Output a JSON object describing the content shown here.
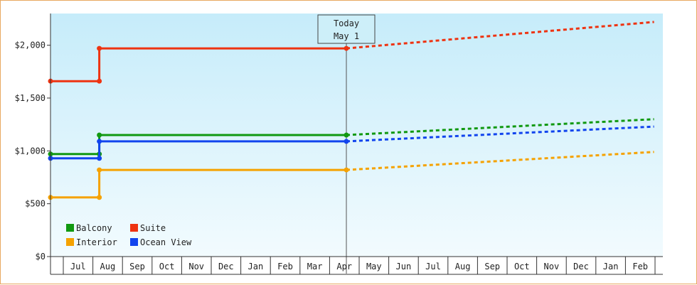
{
  "chart_data": {
    "type": "line",
    "y_ticks": [
      {
        "value": 0,
        "label": "$0"
      },
      {
        "value": 500,
        "label": "$500"
      },
      {
        "value": 1000,
        "label": "$1,000"
      },
      {
        "value": 1500,
        "label": "$1,500"
      },
      {
        "value": 2000,
        "label": "$2,000"
      }
    ],
    "ylim": [
      0,
      2300
    ],
    "x_categories": [
      "Jul",
      "Aug",
      "Sep",
      "Oct",
      "Nov",
      "Dec",
      "Jan",
      "Feb",
      "Mar",
      "Apr",
      "May",
      "Jun",
      "Jul",
      "Aug",
      "Sep",
      "Oct",
      "Nov",
      "Dec",
      "Jan",
      "Feb"
    ],
    "today_marker": {
      "line1": "Today",
      "line2": "May 1",
      "x": 10.0
    },
    "series": [
      {
        "name": "Balcony",
        "color": "#119911",
        "points": [
          [
            0.0,
            970
          ],
          [
            1.65,
            970
          ],
          [
            1.65,
            1150
          ],
          [
            10.0,
            1150
          ]
        ],
        "forecast": [
          [
            10.0,
            1150
          ],
          [
            20.4,
            1300
          ]
        ]
      },
      {
        "name": "Suite",
        "color": "#ee3311",
        "points": [
          [
            0.0,
            1660
          ],
          [
            1.65,
            1660
          ],
          [
            1.65,
            1970
          ],
          [
            10.0,
            1970
          ]
        ],
        "forecast": [
          [
            10.0,
            1970
          ],
          [
            20.4,
            2220
          ]
        ]
      },
      {
        "name": "Interior",
        "color": "#f5a200",
        "points": [
          [
            0.0,
            560
          ],
          [
            1.65,
            560
          ],
          [
            1.65,
            820
          ],
          [
            10.0,
            820
          ]
        ],
        "forecast": [
          [
            10.0,
            820
          ],
          [
            20.4,
            990
          ]
        ]
      },
      {
        "name": "Ocean View",
        "color": "#1144ee",
        "points": [
          [
            0.0,
            930
          ],
          [
            1.65,
            930
          ],
          [
            1.65,
            1090
          ],
          [
            10.0,
            1090
          ]
        ],
        "forecast": [
          [
            10.0,
            1090
          ],
          [
            20.4,
            1230
          ]
        ]
      }
    ],
    "legend_position": "bottom-left",
    "grid": false
  }
}
